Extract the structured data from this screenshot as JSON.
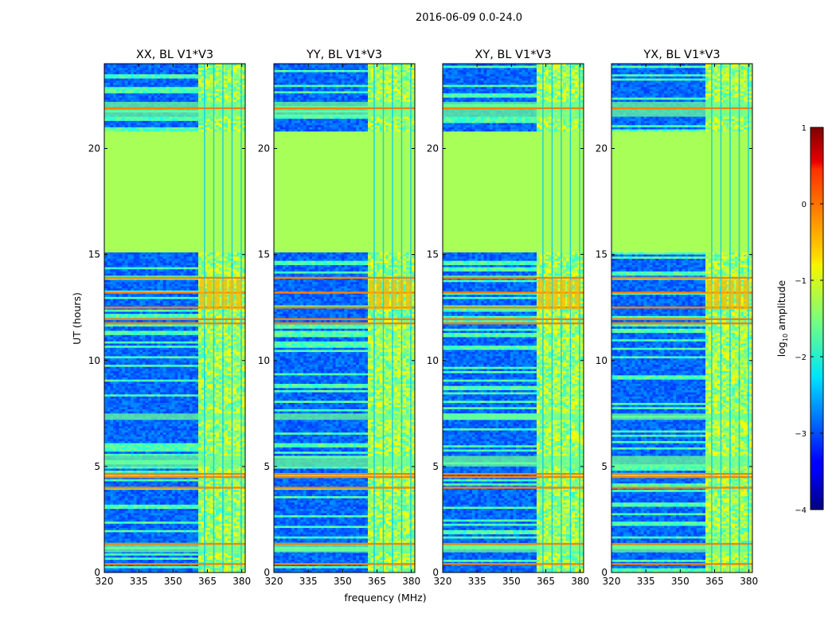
{
  "chart_data": {
    "type": "heatmap",
    "suptitle": "2016-06-09 0.0-24.0",
    "xlabel": "frequency (MHz)",
    "ylabel": "UT (hours)",
    "xlim": [
      320,
      381.5
    ],
    "ylim": [
      0,
      24
    ],
    "xticks": [
      320,
      335,
      350,
      365,
      380
    ],
    "yticks": [
      0,
      5,
      10,
      15,
      20
    ],
    "panels": [
      {
        "title": "XX, BL V1*V3",
        "pol": "XX"
      },
      {
        "title": "YY, BL V1*V3",
        "pol": "YY"
      },
      {
        "title": "XY, BL V1*V3",
        "pol": "XY"
      },
      {
        "title": "YX, BL V1*V3",
        "pol": "YX"
      }
    ],
    "colorbar": {
      "label": "log10 amplitude",
      "label_base": "log",
      "label_sub": "10",
      "label_rest": " amplitude",
      "min": -4,
      "max": 1,
      "ticks": [
        -4,
        -3,
        -2,
        -1,
        0,
        1
      ],
      "tick_labels": [
        "−4",
        "−3",
        "−2",
        "−1",
        "0",
        "1"
      ],
      "colormap": "jet"
    },
    "flagged_region_hours": [
      15.1,
      20.8
    ],
    "flagged_value": -1.3,
    "high_band_mhz": [
      360.5,
      381.5
    ],
    "strong_rows_hours": [
      0.4,
      1.35,
      4.0,
      4.5,
      4.65,
      11.75,
      11.95,
      12.5,
      13.2,
      13.9,
      21.9
    ],
    "band_rows_hours": [
      [
        0.95,
        1.3
      ],
      [
        5.0,
        5.5
      ],
      [
        7.2,
        7.5
      ],
      [
        21.5,
        22.2
      ]
    ]
  }
}
